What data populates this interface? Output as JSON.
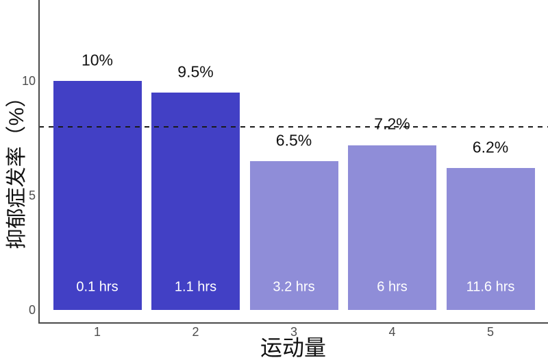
{
  "chart_data": {
    "type": "bar",
    "title": "",
    "xlabel": "运动量",
    "ylabel": "抑郁症发率（%）",
    "categories": [
      "1",
      "2",
      "3",
      "4",
      "5"
    ],
    "values": [
      10,
      9.5,
      6.5,
      7.2,
      6.2
    ],
    "value_labels": [
      "10%",
      "9.5%",
      "6.5%",
      "7.2%",
      "6.2%"
    ],
    "inner_labels": [
      "0.1 hrs",
      "1.1 hrs",
      "3.2 hrs",
      "6 hrs",
      "11.6 hrs"
    ],
    "bar_colors": [
      "#4240C5",
      "#4240C5",
      "#8F8DD8",
      "#8F8DD8",
      "#8F8DD8"
    ],
    "yticks": [
      0,
      5,
      10
    ],
    "ylim": [
      0,
      13.5
    ],
    "grid": false,
    "legend": "none",
    "reference_line": {
      "value": 8,
      "style": "dashed",
      "color": "#1a1a1a"
    },
    "colors": {
      "bar_dark": "#4240C5",
      "bar_light": "#8F8DD8",
      "axis": "#4a4a4a",
      "tick_label": "#4d4d4d",
      "value_label_text": "#111111",
      "inner_label_text": "#ffffff",
      "background": "#ffffff"
    }
  }
}
